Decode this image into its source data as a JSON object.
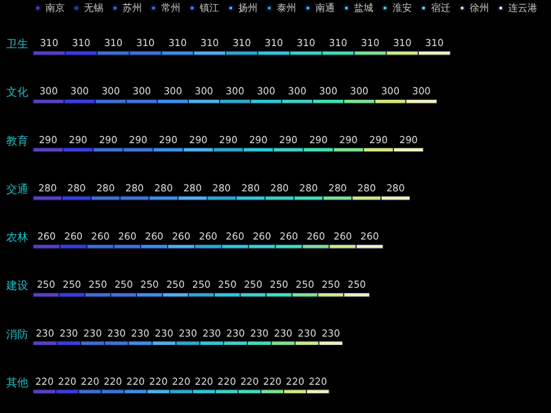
{
  "chart_data": {
    "type": "bar",
    "orientation": "horizontal",
    "stacked": true,
    "data_labels": true,
    "legend": "top",
    "tick_labels": "y",
    "grid": false,
    "categories": [
      "卫生",
      "文化",
      "教育",
      "交通",
      "农林",
      "建设",
      "消防",
      "其他"
    ],
    "series": [
      {
        "name": "南京",
        "color": "#5b3fc4",
        "values": [
          310,
          300,
          290,
          280,
          260,
          250,
          230,
          220
        ]
      },
      {
        "name": "无锡",
        "color": "#3c3ce0",
        "values": [
          310,
          300,
          290,
          280,
          260,
          250,
          230,
          220
        ]
      },
      {
        "name": "苏州",
        "color": "#3f6fd0",
        "values": [
          310,
          300,
          290,
          280,
          260,
          250,
          230,
          220
        ]
      },
      {
        "name": "常州",
        "color": "#4074d8",
        "values": [
          310,
          300,
          290,
          280,
          260,
          250,
          230,
          220
        ]
      },
      {
        "name": "镇江",
        "color": "#3f8ee6",
        "values": [
          310,
          300,
          290,
          280,
          260,
          250,
          230,
          220
        ]
      },
      {
        "name": "扬州",
        "color": "#4fb0e8",
        "values": [
          310,
          300,
          290,
          280,
          260,
          250,
          230,
          220
        ]
      },
      {
        "name": "泰州",
        "color": "#2fa8c8",
        "values": [
          310,
          300,
          290,
          280,
          260,
          250,
          230,
          220
        ]
      },
      {
        "name": "南通",
        "color": "#30c8d0",
        "values": [
          310,
          300,
          290,
          280,
          260,
          250,
          230,
          220
        ]
      },
      {
        "name": "盐城",
        "color": "#40d0c0",
        "values": [
          310,
          300,
          290,
          280,
          260,
          250,
          230,
          220
        ]
      },
      {
        "name": "淮安",
        "color": "#40e0b0",
        "values": [
          310,
          300,
          290,
          280,
          260,
          250,
          230,
          220
        ]
      },
      {
        "name": "宿迁",
        "color": "#80e090",
        "values": [
          310,
          300,
          290,
          280,
          260,
          250,
          230,
          220
        ]
      },
      {
        "name": "徐州",
        "color": "#d0e880",
        "values": [
          310,
          300,
          290,
          280,
          260,
          250,
          230,
          220
        ]
      },
      {
        "name": "连云港",
        "color": "#f0f0c0",
        "values": [
          310,
          300,
          290,
          280,
          260,
          250,
          230,
          220
        ]
      }
    ]
  }
}
